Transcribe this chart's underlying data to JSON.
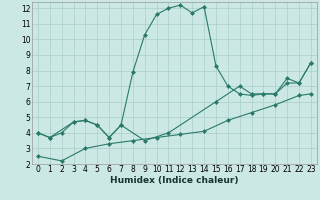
{
  "xlabel": "Humidex (Indice chaleur)",
  "bg_color": "#cce8e4",
  "grid_color": "#aacfcb",
  "line_color": "#2a7a6a",
  "xlim": [
    -0.5,
    23.5
  ],
  "ylim": [
    2,
    12.4
  ],
  "xticks": [
    0,
    1,
    2,
    3,
    4,
    5,
    6,
    7,
    8,
    9,
    10,
    11,
    12,
    13,
    14,
    15,
    16,
    17,
    18,
    19,
    20,
    21,
    22,
    23
  ],
  "yticks": [
    2,
    3,
    4,
    5,
    6,
    7,
    8,
    9,
    10,
    11,
    12
  ],
  "line_peaked_x": [
    0,
    1,
    2,
    3,
    4,
    5,
    6,
    7,
    8,
    9,
    10,
    11,
    12,
    13,
    14,
    15,
    16,
    17,
    18,
    19,
    20,
    21,
    22,
    23
  ],
  "line_peaked_y": [
    4.0,
    3.7,
    4.0,
    4.7,
    4.8,
    4.5,
    3.7,
    4.5,
    7.9,
    10.3,
    11.6,
    12.0,
    12.2,
    11.7,
    12.1,
    8.3,
    7.0,
    6.5,
    6.4,
    6.5,
    6.5,
    7.2,
    7.2,
    8.5
  ],
  "line_upper_x": [
    0,
    1,
    3,
    4,
    5,
    6,
    7,
    9,
    11,
    15,
    17,
    18,
    19,
    20,
    21,
    22,
    23
  ],
  "line_upper_y": [
    4.0,
    3.7,
    4.7,
    4.8,
    4.5,
    3.7,
    4.5,
    3.5,
    4.0,
    6.0,
    7.0,
    6.5,
    6.5,
    6.5,
    7.5,
    7.2,
    8.5
  ],
  "line_lower_x": [
    0,
    2,
    4,
    6,
    8,
    10,
    12,
    14,
    16,
    18,
    20,
    22,
    23
  ],
  "line_lower_y": [
    2.5,
    2.2,
    3.0,
    3.3,
    3.5,
    3.7,
    3.9,
    4.1,
    4.8,
    5.3,
    5.8,
    6.4,
    6.5
  ],
  "markersize": 2.5
}
